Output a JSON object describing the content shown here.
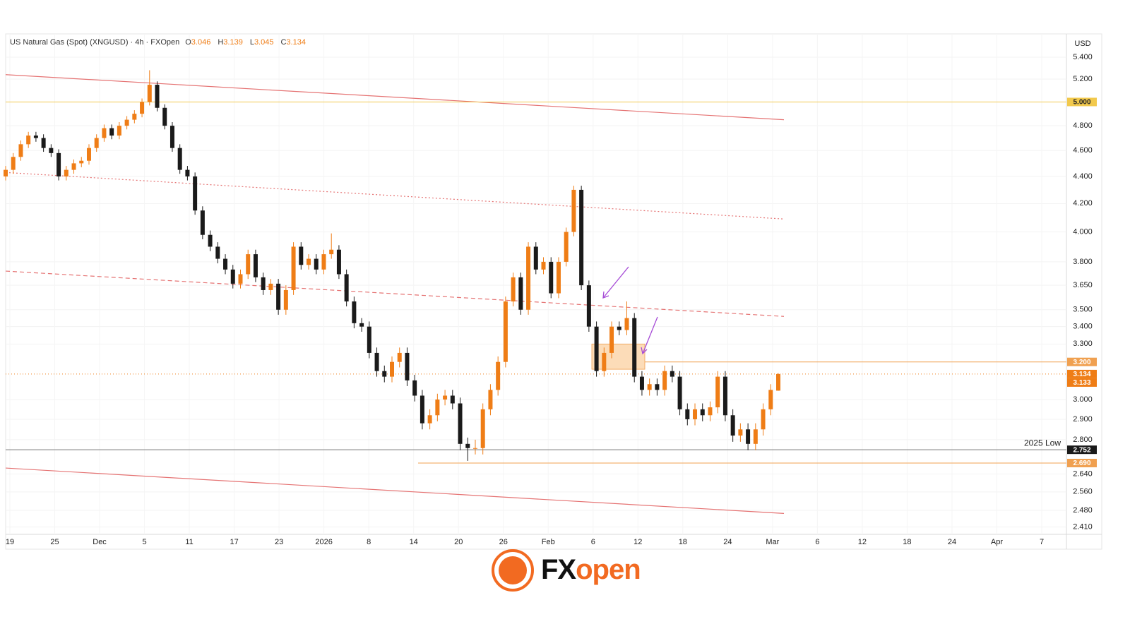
{
  "chart_data": {
    "type": "candlestick",
    "title": "US Natural Gas (Spot) (XNGUSD) · 4h · FXOpen",
    "ohlc_labels": [
      "O",
      "H",
      "L",
      "C"
    ],
    "y_axis_unit": "USD",
    "log_scale": true,
    "grid": true,
    "up_color": "#ef7d16",
    "down_color": "#1a1a1a",
    "ylim": [
      2.38,
      5.62
    ],
    "yticks": [
      {
        "value": 2.41,
        "label": "2.410"
      },
      {
        "value": 2.48,
        "label": "2.480"
      },
      {
        "value": 2.56,
        "label": "2.560"
      },
      {
        "value": 2.64,
        "label": "2.640"
      },
      {
        "value": 2.8,
        "label": "2.800"
      },
      {
        "value": 2.9,
        "label": "2.900"
      },
      {
        "value": 3,
        "label": "3.000"
      },
      {
        "value": 3.3,
        "label": "3.300"
      },
      {
        "value": 3.4,
        "label": "3.400"
      },
      {
        "value": 3.5,
        "label": "3.500"
      },
      {
        "value": 3.65,
        "label": "3.650"
      },
      {
        "value": 3.8,
        "label": "3.800"
      },
      {
        "value": 4,
        "label": "4.000"
      },
      {
        "value": 4.2,
        "label": "4.200"
      },
      {
        "value": 4.4,
        "label": "4.400"
      },
      {
        "value": 4.6,
        "label": "4.600"
      },
      {
        "value": 4.8,
        "label": "4.800"
      },
      {
        "value": 5.2,
        "label": "5.200"
      },
      {
        "value": 5.4,
        "label": "5.400"
      }
    ],
    "x_tick_labels": [
      "19",
      "25",
      "Dec",
      "5",
      "11",
      "17",
      "23",
      "2026",
      "8",
      "14",
      "20",
      "26",
      "Feb",
      "6",
      "12",
      "18",
      "24",
      "Mar",
      "6",
      "12",
      "18",
      "24",
      "Apr",
      "7"
    ],
    "candles": [
      [
        4.4,
        4.48,
        4.37,
        4.45
      ],
      [
        4.45,
        4.58,
        4.42,
        4.55
      ],
      [
        4.55,
        4.68,
        4.52,
        4.65
      ],
      [
        4.65,
        4.75,
        4.62,
        4.72
      ],
      [
        4.72,
        4.75,
        4.67,
        4.7
      ],
      [
        4.7,
        4.73,
        4.59,
        4.62
      ],
      [
        4.62,
        4.65,
        4.55,
        4.58
      ],
      [
        4.58,
        4.61,
        4.37,
        4.4
      ],
      [
        4.4,
        4.48,
        4.37,
        4.45
      ],
      [
        4.45,
        4.53,
        4.42,
        4.5
      ],
      [
        4.5,
        4.55,
        4.47,
        4.52
      ],
      [
        4.52,
        4.65,
        4.49,
        4.62
      ],
      [
        4.62,
        4.73,
        4.59,
        4.7
      ],
      [
        4.7,
        4.81,
        4.67,
        4.78
      ],
      [
        4.78,
        4.81,
        4.69,
        4.72
      ],
      [
        4.72,
        4.83,
        4.69,
        4.8
      ],
      [
        4.8,
        4.88,
        4.77,
        4.85
      ],
      [
        4.85,
        4.93,
        4.82,
        4.9
      ],
      [
        4.9,
        5.03,
        4.87,
        5.0
      ],
      [
        5.0,
        5.28,
        4.97,
        5.15
      ],
      [
        5.15,
        5.18,
        4.92,
        4.95
      ],
      [
        4.95,
        4.98,
        4.77,
        4.8
      ],
      [
        4.8,
        4.83,
        4.59,
        4.62
      ],
      [
        4.62,
        4.65,
        4.42,
        4.45
      ],
      [
        4.45,
        4.48,
        4.37,
        4.4
      ],
      [
        4.4,
        4.43,
        4.12,
        4.15
      ],
      [
        4.15,
        4.18,
        3.95,
        3.98
      ],
      [
        3.98,
        4.01,
        3.87,
        3.9
      ],
      [
        3.9,
        3.93,
        3.79,
        3.82
      ],
      [
        3.82,
        3.85,
        3.72,
        3.75
      ],
      [
        3.75,
        3.78,
        3.63,
        3.66
      ],
      [
        3.66,
        3.75,
        3.63,
        3.72
      ],
      [
        3.72,
        3.88,
        3.69,
        3.85
      ],
      [
        3.85,
        3.88,
        3.67,
        3.7
      ],
      [
        3.7,
        3.73,
        3.59,
        3.62
      ],
      [
        3.62,
        3.69,
        3.59,
        3.66
      ],
      [
        3.66,
        3.69,
        3.47,
        3.5
      ],
      [
        3.5,
        3.65,
        3.47,
        3.62
      ],
      [
        3.62,
        3.93,
        3.59,
        3.9
      ],
      [
        3.9,
        3.93,
        3.75,
        3.78
      ],
      [
        3.78,
        3.85,
        3.75,
        3.82
      ],
      [
        3.82,
        3.85,
        3.72,
        3.75
      ],
      [
        3.75,
        3.88,
        3.72,
        3.85
      ],
      [
        3.85,
        3.99,
        3.82,
        3.88
      ],
      [
        3.88,
        3.91,
        3.69,
        3.72
      ],
      [
        3.72,
        3.75,
        3.52,
        3.55
      ],
      [
        3.55,
        3.58,
        3.39,
        3.42
      ],
      [
        3.42,
        3.45,
        3.37,
        3.4
      ],
      [
        3.4,
        3.43,
        3.22,
        3.25
      ],
      [
        3.25,
        3.28,
        3.12,
        3.15
      ],
      [
        3.15,
        3.18,
        3.09,
        3.12
      ],
      [
        3.12,
        3.23,
        3.09,
        3.2
      ],
      [
        3.2,
        3.28,
        3.17,
        3.25
      ],
      [
        3.25,
        3.28,
        3.07,
        3.1
      ],
      [
        3.1,
        3.13,
        2.99,
        3.02
      ],
      [
        3.02,
        3.05,
        2.85,
        2.88
      ],
      [
        2.88,
        2.95,
        2.85,
        2.92
      ],
      [
        2.92,
        3.03,
        2.89,
        3.0
      ],
      [
        3.0,
        3.05,
        2.97,
        3.02
      ],
      [
        3.02,
        3.05,
        2.95,
        2.98
      ],
      [
        2.98,
        3.01,
        2.75,
        2.78
      ],
      [
        2.78,
        2.81,
        2.7,
        2.76
      ],
      [
        2.76,
        2.8,
        2.73,
        2.76
      ],
      [
        2.76,
        2.98,
        2.73,
        2.95
      ],
      [
        2.95,
        3.08,
        2.92,
        3.05
      ],
      [
        3.05,
        3.23,
        3.02,
        3.2
      ],
      [
        3.2,
        3.58,
        3.17,
        3.55
      ],
      [
        3.55,
        3.73,
        3.52,
        3.7
      ],
      [
        3.7,
        3.73,
        3.47,
        3.5
      ],
      [
        3.5,
        3.93,
        3.47,
        3.9
      ],
      [
        3.9,
        3.93,
        3.72,
        3.75
      ],
      [
        3.75,
        3.83,
        3.72,
        3.8
      ],
      [
        3.8,
        3.83,
        3.57,
        3.6
      ],
      [
        3.6,
        3.83,
        3.57,
        3.8
      ],
      [
        3.8,
        4.03,
        3.77,
        4.0
      ],
      [
        4.0,
        4.33,
        3.97,
        4.3
      ],
      [
        4.3,
        4.33,
        3.62,
        3.65
      ],
      [
        3.65,
        3.68,
        3.37,
        3.4
      ],
      [
        3.4,
        3.43,
        3.12,
        3.15
      ],
      [
        3.15,
        3.28,
        3.12,
        3.25
      ],
      [
        3.25,
        3.43,
        3.22,
        3.4
      ],
      [
        3.4,
        3.43,
        3.35,
        3.38
      ],
      [
        3.38,
        3.55,
        3.35,
        3.45
      ],
      [
        3.45,
        3.48,
        3.09,
        3.12
      ],
      [
        3.12,
        3.15,
        3.02,
        3.05
      ],
      [
        3.05,
        3.11,
        3.02,
        3.08
      ],
      [
        3.08,
        3.11,
        3.02,
        3.05
      ],
      [
        3.05,
        3.18,
        3.02,
        3.15
      ],
      [
        3.15,
        3.18,
        3.09,
        3.12
      ],
      [
        3.12,
        3.15,
        2.92,
        2.95
      ],
      [
        2.95,
        2.98,
        2.87,
        2.9
      ],
      [
        2.9,
        2.98,
        2.87,
        2.95
      ],
      [
        2.95,
        2.98,
        2.89,
        2.92
      ],
      [
        2.92,
        2.99,
        2.89,
        2.96
      ],
      [
        2.96,
        3.15,
        2.93,
        3.12
      ],
      [
        3.12,
        3.15,
        2.89,
        2.92
      ],
      [
        2.92,
        2.95,
        2.79,
        2.82
      ],
      [
        2.82,
        2.88,
        2.79,
        2.85
      ],
      [
        2.85,
        2.88,
        2.75,
        2.78
      ],
      [
        2.78,
        2.88,
        2.75,
        2.85
      ],
      [
        2.85,
        2.98,
        2.82,
        2.95
      ],
      [
        2.95,
        3.08,
        2.92,
        3.05
      ],
      [
        3.046,
        3.139,
        3.045,
        3.134
      ]
    ],
    "price_lines": [
      {
        "value": 5,
        "label": "5.000",
        "color": "#f2c94c"
      },
      {
        "value": 3.2,
        "label": "3.200",
        "color": "#f0a050"
      },
      {
        "value": 3.134,
        "color": "#ef7d16"
      },
      {
        "value": 3.133,
        "color": "#ef7d16"
      },
      {
        "value": 2.752,
        "color": "#1a1a1a",
        "annotation": "2025 Low"
      },
      {
        "value": 2.69,
        "label": "2.690",
        "color": "#f0a050"
      }
    ],
    "channel_lines": [
      {
        "values": [
          5.24,
          4.85
        ],
        "style": "solid",
        "color": "#e57373"
      },
      {
        "values": [
          4.43,
          4.09
        ],
        "style": "dotted",
        "color": "#e57373"
      },
      {
        "values": [
          3.74,
          3.46
        ],
        "style": "dashed",
        "color": "#e57373"
      },
      {
        "values": [
          2.667,
          2.467
        ],
        "style": "solid",
        "color": "#e57373"
      }
    ],
    "zone": {
      "top": 3.3,
      "bottom": 3.16,
      "color": "#fbd3a6"
    }
  },
  "logo": {
    "brand_a": "FX",
    "brand_b": "open"
  }
}
